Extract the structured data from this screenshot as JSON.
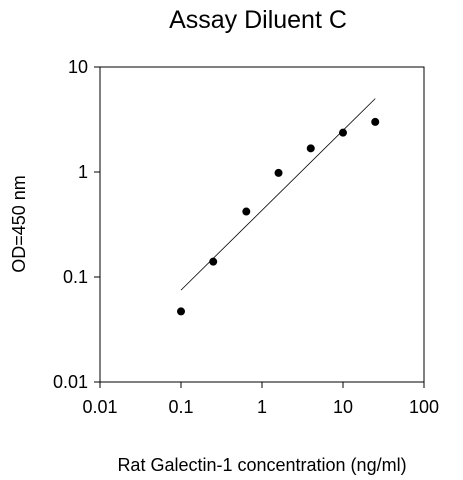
{
  "chart_data": {
    "type": "scatter",
    "title": "Assay Diluent C",
    "xlabel": "Rat Galectin-1 concentration (ng/ml)",
    "ylabel": "OD=450 nm",
    "xscale": "log",
    "yscale": "log",
    "xlim": [
      0.01,
      100
    ],
    "ylim": [
      0.01,
      10
    ],
    "x_ticks": [
      0.01,
      0.1,
      1,
      10,
      100
    ],
    "y_ticks": [
      0.01,
      0.1,
      1,
      10
    ],
    "x_tick_labels": [
      "0.01",
      "0.1",
      "1",
      "10",
      "100"
    ],
    "y_tick_labels": [
      "0.01",
      "0.1",
      "1",
      "10"
    ],
    "grid": false,
    "legend": "none",
    "points": [
      {
        "x": 0.1,
        "y": 0.047
      },
      {
        "x": 0.25,
        "y": 0.14
      },
      {
        "x": 0.64,
        "y": 0.42
      },
      {
        "x": 1.6,
        "y": 0.98
      },
      {
        "x": 4,
        "y": 1.68
      },
      {
        "x": 10,
        "y": 2.37
      },
      {
        "x": 25,
        "y": 3.0
      }
    ],
    "fit_line": {
      "x": [
        0.1,
        25
      ],
      "y": [
        0.075,
        5.0
      ]
    },
    "colors": {
      "marker": "#000000",
      "line": "#000000",
      "axis": "#000000"
    }
  }
}
